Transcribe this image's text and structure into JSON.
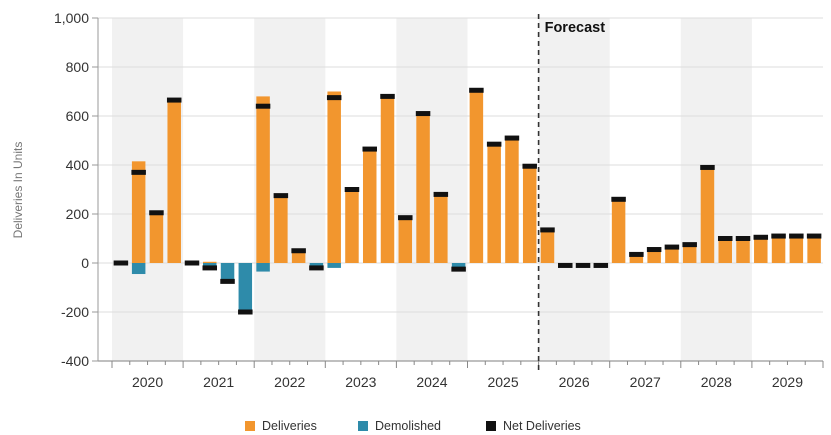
{
  "chart_data": {
    "type": "bar",
    "ylabel": "Deliveries In Units",
    "xlabel": "",
    "ylim": [
      -400,
      1000
    ],
    "yticks": [
      -400,
      -200,
      0,
      200,
      400,
      600,
      800,
      1000
    ],
    "ytick_labels": [
      "-400",
      "-200",
      "0",
      "200",
      "400",
      "600",
      "800",
      "1,000"
    ],
    "grid": true,
    "legend_position": "bottom-center",
    "forecast_label": "Forecast",
    "forecast_starts_after_quarter": "2025 Q4",
    "years": [
      "2020",
      "2021",
      "2022",
      "2023",
      "2024",
      "2025",
      "2026",
      "2027",
      "2028",
      "2029"
    ],
    "quarters_per_year": 4,
    "colors": {
      "deliveries": "#F2962E",
      "demolished": "#2E8BAA",
      "net": "#111111",
      "band": "#F1F1F1",
      "grid": "#DDDDDD"
    },
    "series": [
      {
        "name": "Deliveries",
        "values": [
          0,
          415,
          205,
          670,
          5,
          5,
          0,
          0,
          680,
          275,
          50,
          0,
          700,
          300,
          470,
          680,
          185,
          610,
          280,
          0,
          705,
          485,
          510,
          395,
          135,
          0,
          0,
          0,
          260,
          35,
          55,
          65,
          75,
          390,
          100,
          105,
          110,
          115,
          115,
          115
        ]
      },
      {
        "name": "Demolished",
        "values": [
          0,
          -45,
          0,
          0,
          0,
          -25,
          -75,
          -200,
          -35,
          0,
          0,
          -20,
          -20,
          0,
          0,
          0,
          0,
          0,
          0,
          -25,
          0,
          0,
          0,
          0,
          0,
          0,
          0,
          0,
          0,
          0,
          0,
          0,
          0,
          0,
          0,
          0,
          0,
          0,
          0,
          0
        ]
      },
      {
        "name": "Net Deliveries",
        "values": [
          0,
          370,
          205,
          665,
          0,
          -20,
          -75,
          -200,
          640,
          275,
          50,
          -20,
          675,
          300,
          465,
          680,
          185,
          610,
          280,
          -25,
          705,
          485,
          510,
          395,
          135,
          -10,
          -10,
          -10,
          260,
          35,
          55,
          65,
          75,
          390,
          100,
          100,
          105,
          110,
          110,
          110
        ]
      }
    ]
  }
}
